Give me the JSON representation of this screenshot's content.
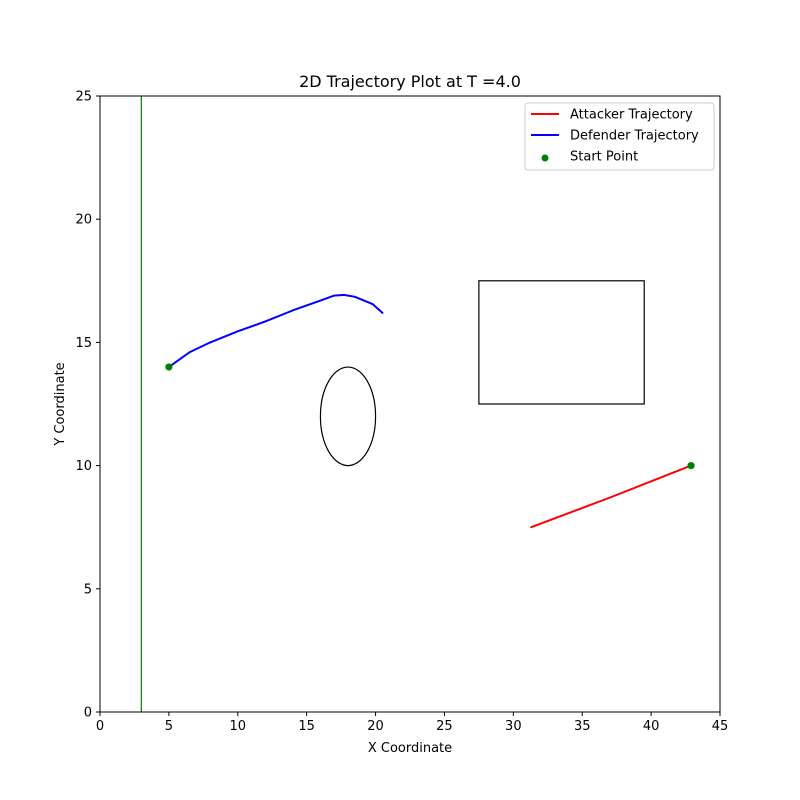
{
  "chart_data": {
    "type": "line",
    "title": "2D Trajectory Plot at T =4.0",
    "xlabel": "X Coordinate",
    "ylabel": "Y Coordinate",
    "xlim": [
      0,
      45
    ],
    "ylim": [
      0,
      25
    ],
    "xticks": [
      0,
      5,
      10,
      15,
      20,
      25,
      30,
      35,
      40,
      45
    ],
    "yticks": [
      0,
      5,
      10,
      15,
      20,
      25
    ],
    "grid": false,
    "legend": {
      "placement": "top-right",
      "entries": [
        {
          "label": "Attacker Trajectory",
          "kind": "line",
          "color": "#ff0000"
        },
        {
          "label": "Defender Trajectory",
          "kind": "line",
          "color": "#0000ff"
        },
        {
          "label": "Start Point",
          "kind": "marker",
          "color": "#008000"
        }
      ]
    },
    "series": [
      {
        "name": "Attacker Trajectory",
        "color": "#ff0000",
        "points": [
          [
            42.9,
            10.0
          ],
          [
            37.0,
            8.7
          ],
          [
            31.3,
            7.5
          ]
        ]
      },
      {
        "name": "Defender Trajectory",
        "color": "#0000ff",
        "points": [
          [
            5.0,
            14.0
          ],
          [
            5.5,
            14.2
          ],
          [
            6.5,
            14.6
          ],
          [
            8.0,
            15.0
          ],
          [
            10.0,
            15.45
          ],
          [
            12.0,
            15.85
          ],
          [
            14.0,
            16.3
          ],
          [
            16.0,
            16.7
          ],
          [
            17.0,
            16.9
          ],
          [
            17.7,
            16.93
          ],
          [
            18.5,
            16.85
          ],
          [
            19.8,
            16.55
          ],
          [
            20.5,
            16.2
          ]
        ]
      },
      {
        "name": "Start Point",
        "kind": "scatter",
        "color": "#008000",
        "points": [
          [
            5.0,
            14.0
          ],
          [
            42.9,
            10.0
          ]
        ]
      }
    ],
    "shapes": [
      {
        "kind": "vertical-line",
        "x": 3.0,
        "color": "#008000"
      },
      {
        "kind": "ellipse",
        "center": [
          18.0,
          12.0
        ],
        "width": 4.0,
        "height": 4.0,
        "color": "#000000"
      },
      {
        "kind": "rectangle",
        "x0": 27.5,
        "y0": 12.5,
        "x1": 39.5,
        "y1": 17.5,
        "color": "#000000"
      }
    ]
  }
}
